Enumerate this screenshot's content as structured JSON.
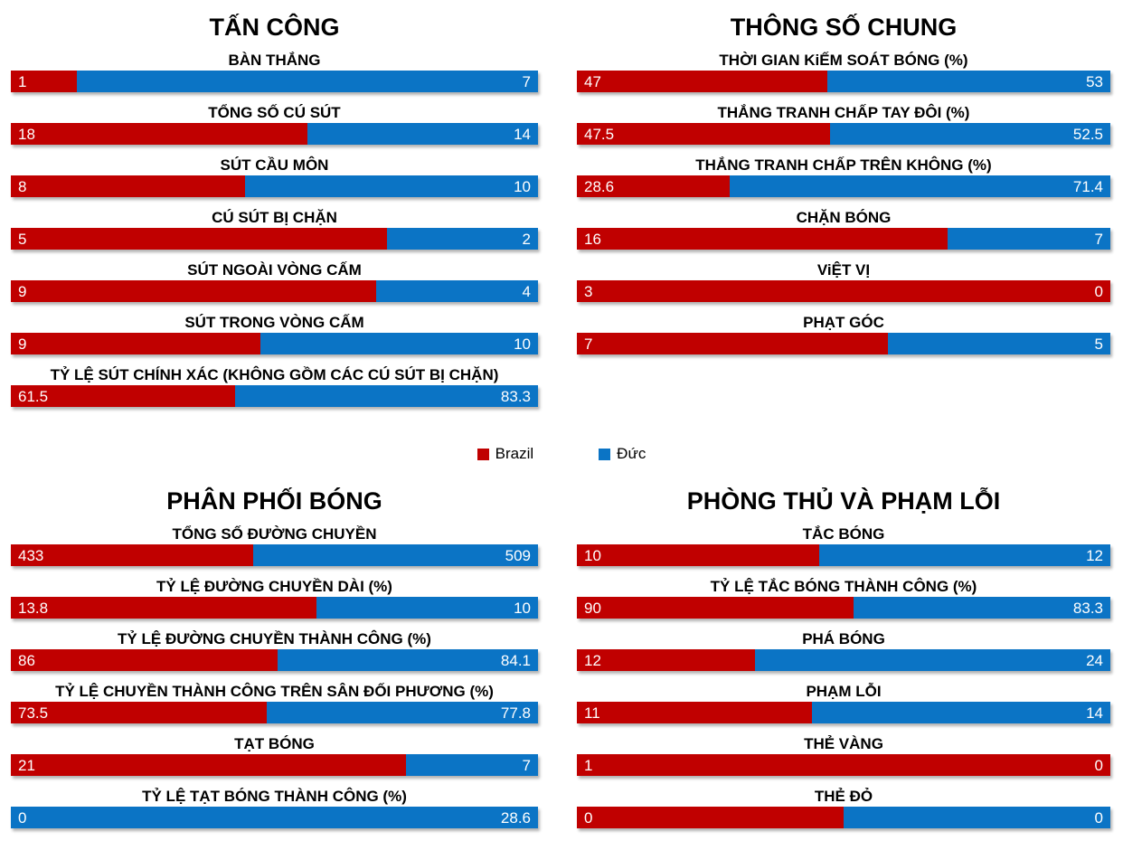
{
  "page": {
    "background": "#FFFFFF"
  },
  "colors": {
    "brazil_red": "#C00000",
    "duc_blue": "#0B74C5",
    "bar_value_text": "#FFFFFF",
    "label_text": "#000000"
  },
  "legend": {
    "items": [
      {
        "label": "Brazil",
        "color": "#C00000"
      },
      {
        "label": "Đức",
        "color": "#0B74C5"
      }
    ]
  },
  "chart_data": [
    {
      "type": "bar",
      "variant": "horizontal-proportional-stacked",
      "title": "TẤN CÔNG",
      "series_names": [
        "Brazil",
        "Đức"
      ],
      "legend_position": "middle-center-of-page",
      "grid": false,
      "rows": [
        {
          "label": "BÀN THẮNG",
          "values": [
            1,
            7
          ]
        },
        {
          "label": "TỔNG SỐ CÚ SÚT",
          "values": [
            18,
            14
          ]
        },
        {
          "label": "SÚT CẦU MÔN",
          "values": [
            8,
            10
          ]
        },
        {
          "label": "CÚ SÚT BỊ CHẶN",
          "values": [
            5,
            2
          ]
        },
        {
          "label": "SÚT NGOÀI VÒNG CẤM",
          "values": [
            9,
            4
          ]
        },
        {
          "label": "SÚT TRONG VÒNG CẤM",
          "values": [
            9,
            10
          ]
        },
        {
          "label": "TỶ LỆ SÚT CHÍNH XÁC (KHÔNG GỒM CÁC CÚ SÚT BỊ CHẶN)",
          "values": [
            61.5,
            83.3
          ]
        }
      ]
    },
    {
      "type": "bar",
      "variant": "horizontal-proportional-stacked",
      "title": "THÔNG SỐ CHUNG",
      "series_names": [
        "Brazil",
        "Đức"
      ],
      "grid": false,
      "rows": [
        {
          "label": "THỜI GIAN KiẾM SOÁT BÓNG (%)",
          "values": [
            47,
            53
          ]
        },
        {
          "label": "THẮNG TRANH CHẤP TAY ĐÔI (%)",
          "values": [
            47.5,
            52.5
          ]
        },
        {
          "label": "THẮNG TRANH CHẤP TRÊN KHÔNG (%)",
          "values": [
            28.6,
            71.4
          ]
        },
        {
          "label": "CHẶN BÓNG",
          "values": [
            16,
            7
          ]
        },
        {
          "label": "ViỆT VỊ",
          "values": [
            3,
            0
          ]
        },
        {
          "label": "PHẠT GÓC",
          "values": [
            7,
            5
          ]
        }
      ]
    },
    {
      "type": "bar",
      "variant": "horizontal-proportional-stacked",
      "title": "PHÂN PHỐI BÓNG",
      "series_names": [
        "Brazil",
        "Đức"
      ],
      "grid": false,
      "rows": [
        {
          "label": "TỔNG SỐ ĐƯỜNG CHUYỀN",
          "values": [
            433,
            509
          ]
        },
        {
          "label": "TỶ LỆ ĐƯỜNG CHUYỀN DÀI (%)",
          "values": [
            13.8,
            10
          ]
        },
        {
          "label": "TỶ LỆ ĐƯỜNG CHUYỀN THÀNH CÔNG (%)",
          "values": [
            86,
            84.1
          ]
        },
        {
          "label": "TỶ LỆ CHUYỀN THÀNH CÔNG TRÊN SÂN ĐỐI PHƯƠNG (%)",
          "values": [
            73.5,
            77.8
          ]
        },
        {
          "label": "TẠT BÓNG",
          "values": [
            21,
            7
          ]
        },
        {
          "label": "TỶ LỆ TẠT BÓNG THÀNH CÔNG (%)",
          "values": [
            0,
            28.6
          ]
        }
      ]
    },
    {
      "type": "bar",
      "variant": "horizontal-proportional-stacked",
      "title": "PHÒNG THỦ VÀ PHẠM LỖI",
      "series_names": [
        "Brazil",
        "Đức"
      ],
      "grid": false,
      "rows": [
        {
          "label": "TẮC BÓNG",
          "values": [
            10,
            12
          ]
        },
        {
          "label": "TỶ LỆ TẮC BÓNG THÀNH CÔNG (%)",
          "values": [
            90,
            83.3
          ]
        },
        {
          "label": "PHÁ BÓNG",
          "values": [
            12,
            24
          ]
        },
        {
          "label": "PHẠM LỖI",
          "values": [
            11,
            14
          ]
        },
        {
          "label": "THẺ VÀNG",
          "values": [
            1,
            0
          ]
        },
        {
          "label": "THẺ ĐỎ",
          "values": [
            0,
            0
          ]
        }
      ]
    }
  ]
}
